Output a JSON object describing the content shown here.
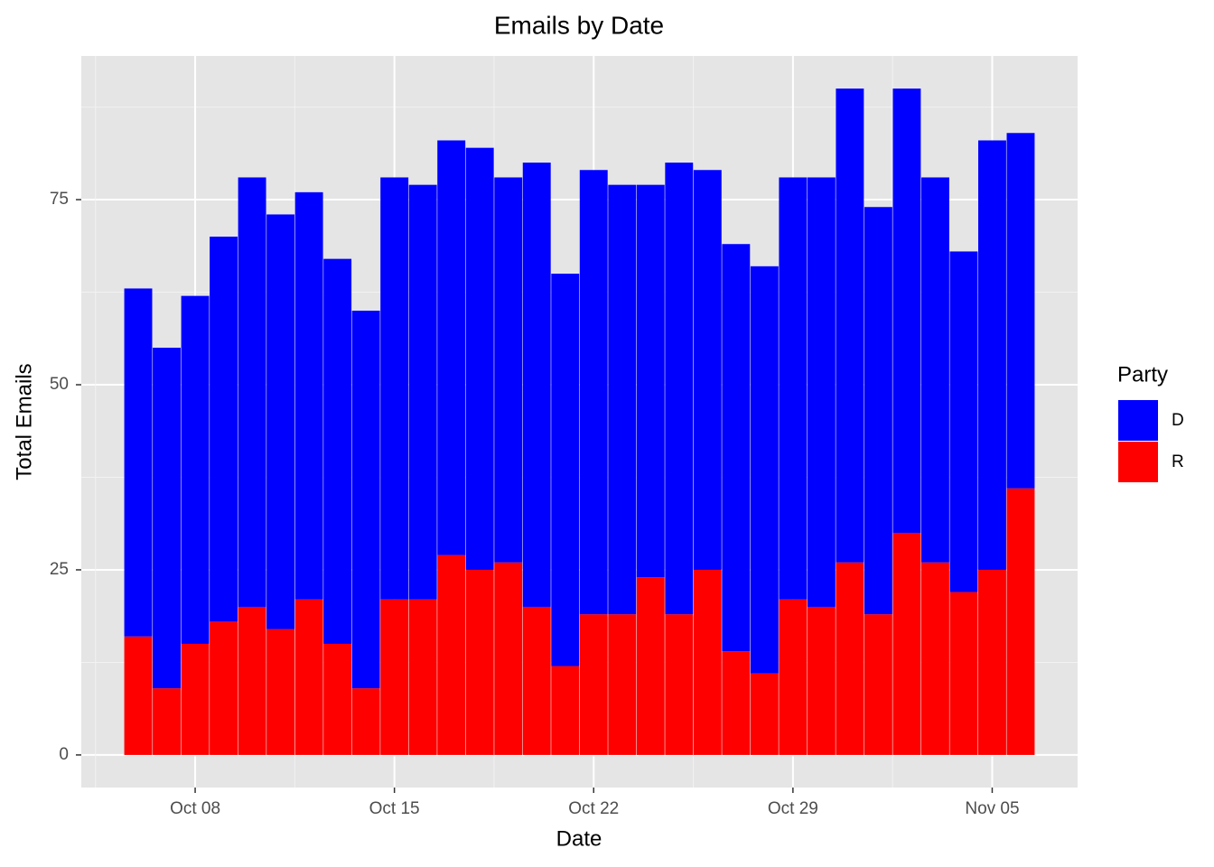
{
  "chart_data": {
    "type": "bar",
    "stacked": true,
    "title": "Emails by Date",
    "x_label": "Date",
    "y_label": "Total Emails",
    "legend_title": "Party",
    "legend_position": "right",
    "x": [
      "Oct 06",
      "Oct 07",
      "Oct 08",
      "Oct 09",
      "Oct 10",
      "Oct 11",
      "Oct 12",
      "Oct 13",
      "Oct 14",
      "Oct 15",
      "Oct 16",
      "Oct 17",
      "Oct 18",
      "Oct 19",
      "Oct 20",
      "Oct 21",
      "Oct 22",
      "Oct 23",
      "Oct 24",
      "Oct 25",
      "Oct 26",
      "Oct 27",
      "Oct 28",
      "Oct 29",
      "Oct 30",
      "Oct 31",
      "Nov 01",
      "Nov 02",
      "Nov 03",
      "Nov 04",
      "Nov 05",
      "Nov 06"
    ],
    "series": [
      {
        "name": "D",
        "color": "#0000ff",
        "values": [
          47,
          46,
          47,
          52,
          58,
          56,
          55,
          52,
          51,
          57,
          56,
          56,
          57,
          52,
          60,
          53,
          60,
          58,
          53,
          61,
          54,
          55,
          55,
          57,
          58,
          64,
          55,
          60,
          52,
          46,
          58,
          48
        ]
      },
      {
        "name": "R",
        "color": "#ff0000",
        "values": [
          16,
          9,
          15,
          18,
          20,
          17,
          21,
          15,
          9,
          21,
          21,
          27,
          25,
          26,
          20,
          12,
          19,
          19,
          24,
          19,
          25,
          14,
          11,
          21,
          20,
          26,
          19,
          30,
          26,
          22,
          25,
          36
        ]
      }
    ],
    "xlim": [
      "Oct 04",
      "Nov 08"
    ],
    "xticks": [
      "Oct 08",
      "Oct 15",
      "Oct 22",
      "Oct 29",
      "Nov 05"
    ],
    "ylim": [
      -4.4,
      94.4
    ],
    "yticks": [
      0,
      25,
      50,
      75
    ],
    "grid": true
  }
}
